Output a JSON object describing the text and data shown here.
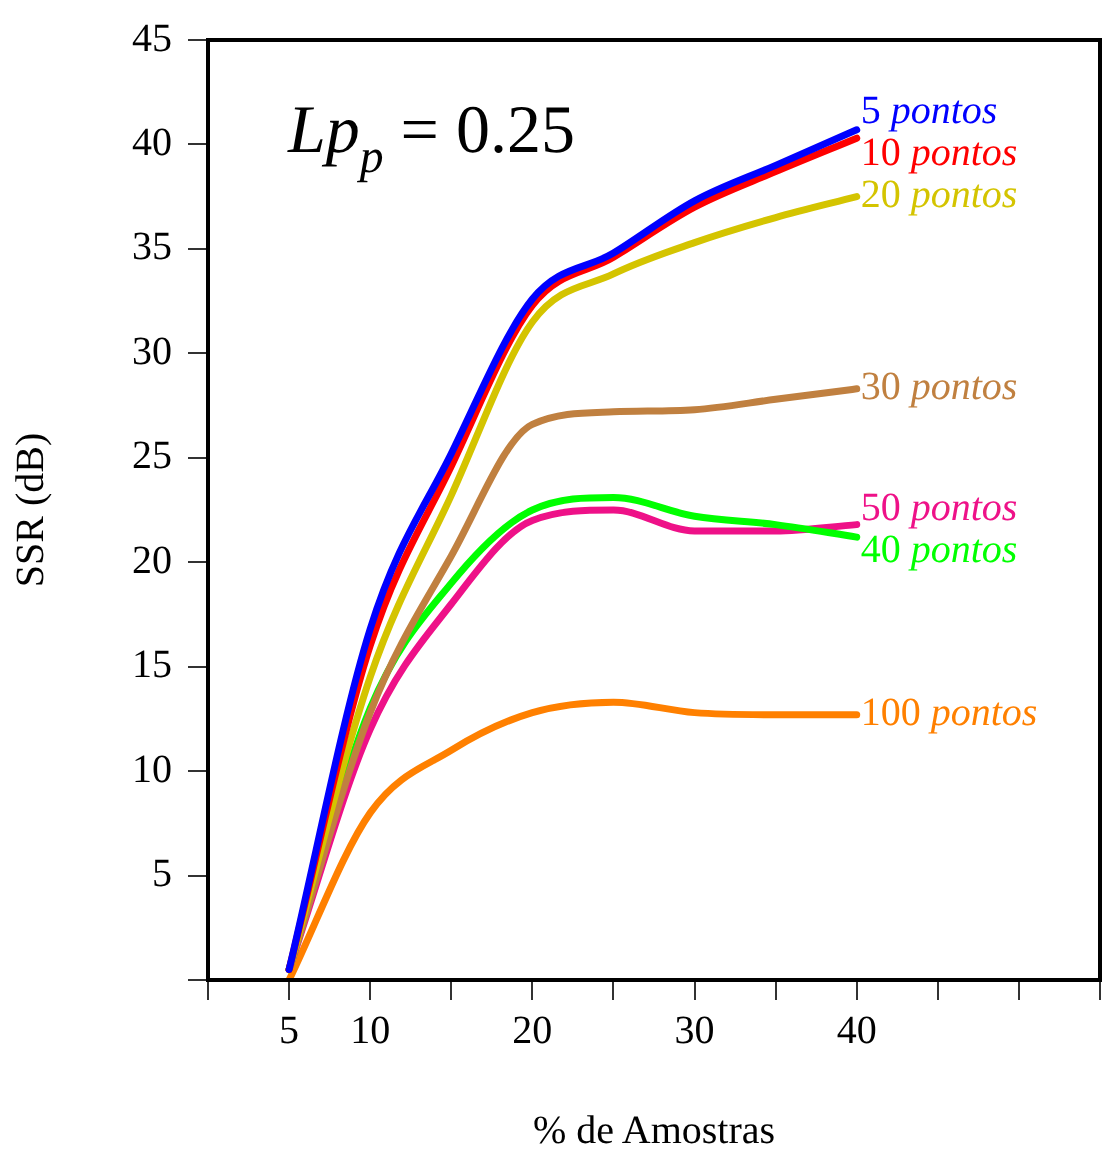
{
  "chart_data": {
    "type": "line",
    "xlabel": "% de Amostras",
    "ylabel": "SSR (dB)",
    "annotations": [
      "Lp$_{p}$ = 0.25"
    ],
    "x": [
      5,
      10,
      15,
      20,
      25,
      30,
      35,
      40
    ],
    "series": [
      {
        "name": "5 pontos",
        "color": "#0000ff",
        "values": [
          0.5,
          16.8,
          25.2,
          32.6,
          34.8,
          37.3,
          39.0,
          40.7
        ]
      },
      {
        "name": "10 pontos",
        "color": "#ff0000",
        "values": [
          0.5,
          16.0,
          24.6,
          32.3,
          34.6,
          37.0,
          38.7,
          40.3
        ]
      },
      {
        "name": "20 pontos",
        "color": "#d4c400",
        "values": [
          0.5,
          14.5,
          23.2,
          31.5,
          33.8,
          35.3,
          36.5,
          37.5
        ]
      },
      {
        "name": "30 pontos",
        "color": "#c08040",
        "values": [
          0.5,
          12.8,
          20.3,
          26.6,
          27.2,
          27.3,
          27.8,
          28.3
        ]
      },
      {
        "name": "40 pontos",
        "color": "#00ff00",
        "values": [
          0.5,
          13.0,
          19.0,
          22.5,
          23.1,
          22.2,
          21.8,
          21.2
        ]
      },
      {
        "name": "50 pontos",
        "color": "#ee1188",
        "values": [
          0.5,
          12.0,
          18.0,
          22.0,
          22.5,
          21.5,
          21.5,
          21.8
        ]
      },
      {
        "name": "100 pontos",
        "color": "#ff8000",
        "values": [
          0.0,
          8.0,
          11.0,
          12.8,
          13.3,
          12.8,
          12.7,
          12.7
        ]
      }
    ],
    "xlim": [
      0,
      55
    ],
    "xticks": [
      {
        "value": 0,
        "label": null
      },
      5,
      10,
      {
        "value": 15,
        "label": null
      },
      20,
      {
        "value": 25,
        "label": null
      },
      30,
      {
        "value": 35,
        "label": null
      },
      40,
      {
        "value": 45,
        "label": null
      },
      {
        "value": 50,
        "label": null
      },
      {
        "value": 55,
        "label": null
      }
    ],
    "ylim": [
      0,
      45
    ],
    "yticks": [
      {
        "value": 0,
        "label": null
      },
      5,
      10,
      15,
      20,
      25,
      30,
      35,
      40,
      45
    ],
    "grid": false,
    "legend": false,
    "marker": "none",
    "line_style": "solid"
  }
}
